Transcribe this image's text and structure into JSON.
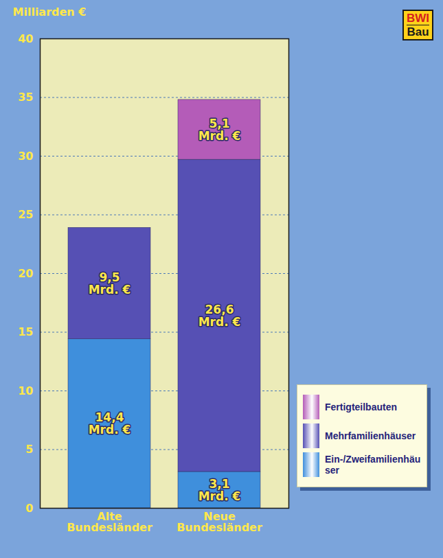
{
  "chart_data": {
    "type": "bar",
    "stacked": true,
    "y_label": "Milliarden €",
    "categories": [
      "Alte Bundesländer",
      "Neue Bundesländer"
    ],
    "series": [
      {
        "name": "Ein-/Zweifamilienhäuser",
        "color": "#3f8fdc",
        "values": [
          14.4,
          3.1
        ],
        "value_labels": [
          "14,4 Mrd. €",
          "3,1 Mrd. €"
        ]
      },
      {
        "name": "Mehrfamilienhäuser",
        "color": "#5650b4",
        "values": [
          9.5,
          26.6
        ],
        "value_labels": [
          "9,5 Mrd. €",
          "26,6 Mrd. €"
        ]
      },
      {
        "name": "Fertigteilbauten",
        "color": "#b45cb8",
        "values": [
          null,
          5.1
        ],
        "value_labels": [
          null,
          "5,1 Mrd. €"
        ]
      }
    ],
    "ylim": [
      0,
      40
    ],
    "yticks": [
      0,
      5,
      10,
      15,
      20,
      25,
      30,
      35,
      40
    ],
    "grid": true,
    "data_labels": true,
    "legend": "bottom-right",
    "logo": [
      "BWI",
      "Bau"
    ]
  }
}
